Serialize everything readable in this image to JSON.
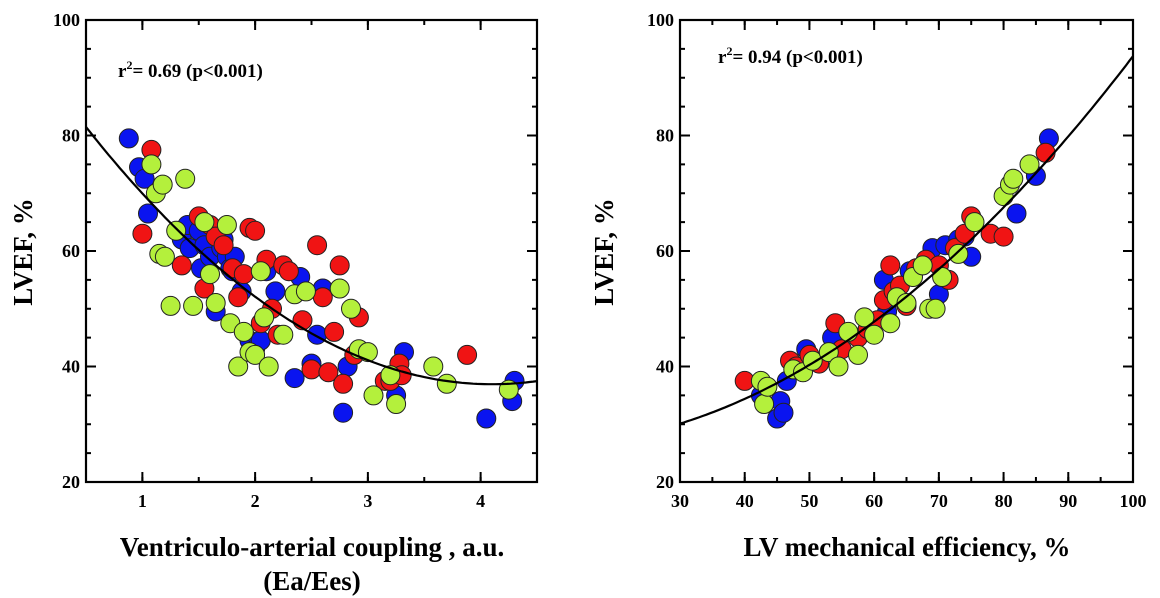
{
  "colors": {
    "blue": "#0a14f0",
    "red": "#f01414",
    "green": "#b4f03c",
    "axis": "#000000"
  },
  "chart_data": [
    {
      "type": "scatter",
      "title": "",
      "annotation": {
        "r2_prefix": "r",
        "r2_exp": "2",
        "r2_text": "= 0.69 (p<0.001)"
      },
      "xlabel": "Ventriculo-arterial coupling , a.u.",
      "xlabel2": "(Ea/Ees)",
      "ylabel": "LVEF, %",
      "xlim": [
        0.5,
        4.5
      ],
      "ylim": [
        20,
        100
      ],
      "xticks": [
        1,
        2,
        3,
        4
      ],
      "xtick_labels": [
        "1",
        "2",
        "3",
        "4"
      ],
      "yticks": [
        20,
        40,
        60,
        80,
        100
      ],
      "ytick_labels": [
        "20",
        "40",
        "60",
        "80",
        "100"
      ],
      "grid": false,
      "fit_curve": {
        "type": "quadratic",
        "x": [
          0.5,
          0.8,
          1.0,
          1.5,
          2.0,
          2.5,
          3.0,
          3.5,
          4.0,
          4.5
        ],
        "y": [
          80.5,
          74.5,
          70.5,
          61.0,
          52.5,
          45.5,
          40.5,
          37.5,
          37.0,
          38.0
        ]
      },
      "series": [
        {
          "color": "blue",
          "x": [
            0.88,
            0.97,
            1.02,
            1.05,
            1.35,
            1.4,
            1.42,
            1.5,
            1.52,
            1.55,
            1.6,
            1.65,
            1.7,
            1.72,
            1.75,
            1.78,
            1.8,
            1.82,
            1.88,
            1.95,
            2.0,
            2.05,
            2.1,
            2.18,
            2.35,
            2.4,
            2.5,
            2.55,
            2.6,
            2.78,
            2.82,
            3.25,
            3.32,
            4.05,
            4.28,
            4.3
          ],
          "y": [
            79.5,
            74.5,
            72.5,
            66.5,
            62.0,
            64.5,
            60.5,
            63.5,
            57.0,
            61.0,
            59.0,
            49.5,
            60.5,
            62.0,
            59.0,
            57.0,
            56.5,
            59.0,
            53.0,
            44.5,
            43.0,
            44.5,
            56.5,
            53.0,
            38.0,
            55.5,
            40.5,
            45.5,
            53.5,
            32.0,
            40.0,
            35.0,
            42.5,
            31.0,
            34.0,
            37.5
          ]
        },
        {
          "color": "red",
          "x": [
            1.0,
            1.08,
            1.35,
            1.5,
            1.55,
            1.6,
            1.65,
            1.72,
            1.8,
            1.85,
            1.9,
            1.95,
            2.0,
            2.05,
            2.1,
            2.15,
            2.2,
            2.25,
            2.3,
            2.42,
            2.5,
            2.55,
            2.6,
            2.65,
            2.7,
            2.75,
            2.78,
            2.88,
            2.92,
            3.15,
            3.2,
            3.28,
            3.3,
            3.88
          ],
          "y": [
            63.0,
            77.5,
            57.5,
            66.0,
            53.5,
            64.5,
            62.5,
            61.0,
            57.0,
            52.0,
            56.0,
            64.0,
            63.5,
            47.5,
            58.5,
            50.0,
            45.5,
            57.5,
            56.5,
            48.0,
            39.5,
            61.0,
            52.0,
            39.0,
            46.0,
            57.5,
            37.0,
            42.0,
            48.5,
            37.5,
            37.5,
            40.5,
            38.5,
            42.0
          ]
        },
        {
          "color": "green",
          "x": [
            1.08,
            1.12,
            1.15,
            1.18,
            1.2,
            1.25,
            1.3,
            1.38,
            1.45,
            1.55,
            1.6,
            1.65,
            1.75,
            1.78,
            1.85,
            1.9,
            1.95,
            2.0,
            2.05,
            2.08,
            2.12,
            2.25,
            2.35,
            2.45,
            2.75,
            2.85,
            2.92,
            3.0,
            3.05,
            3.2,
            3.25,
            3.58,
            3.7,
            4.25
          ],
          "y": [
            75.0,
            70.0,
            59.5,
            71.5,
            59.0,
            50.5,
            63.5,
            72.5,
            50.5,
            65.0,
            56.0,
            51.0,
            64.5,
            47.5,
            40.0,
            46.0,
            42.5,
            42.0,
            56.5,
            48.5,
            40.0,
            45.5,
            52.5,
            53.0,
            53.5,
            50.0,
            43.0,
            42.5,
            35.0,
            38.5,
            33.5,
            40.0,
            37.0,
            36.0
          ]
        }
      ]
    },
    {
      "type": "scatter",
      "title": "",
      "annotation": {
        "r2_prefix": "r",
        "r2_exp": "2",
        "r2_text": "= 0.94 (p<0.001)"
      },
      "xlabel": "LV mechanical efficiency, %",
      "ylabel": "LVEF, %",
      "xlim": [
        30,
        100
      ],
      "ylim": [
        20,
        100
      ],
      "xticks": [
        30,
        40,
        50,
        60,
        70,
        80,
        90,
        100
      ],
      "xtick_labels": [
        "30",
        "40",
        "50",
        "60",
        "70",
        "80",
        "90",
        "100"
      ],
      "yticks": [
        20,
        40,
        60,
        80,
        100
      ],
      "ytick_labels": [
        "20",
        "40",
        "60",
        "80",
        "100"
      ],
      "grid": false,
      "fit_curve": {
        "type": "quadratic",
        "x": [
          30,
          40,
          50,
          60,
          70,
          80,
          90,
          100
        ],
        "y": [
          29.0,
          35.0,
          41.5,
          48.5,
          56.5,
          66.0,
          79.0,
          95.0
        ]
      },
      "series": [
        {
          "color": "blue",
          "x": [
            42.5,
            45.0,
            45.5,
            46.0,
            46.5,
            49.5,
            53.5,
            61.5,
            62.0,
            65.5,
            69.0,
            70.0,
            71.0,
            73.0,
            74.0,
            75.0,
            82.0,
            85.0,
            87.0
          ],
          "y": [
            35.0,
            31.0,
            34.0,
            32.0,
            37.5,
            43.0,
            45.0,
            55.0,
            49.5,
            56.5,
            60.5,
            52.5,
            61.0,
            62.0,
            62.5,
            59.0,
            66.5,
            73.0,
            79.5
          ]
        },
        {
          "color": "red",
          "x": [
            40.0,
            47.0,
            48.0,
            50.0,
            51.5,
            54.0,
            55.0,
            57.5,
            59.0,
            60.5,
            61.5,
            62.5,
            63.0,
            64.0,
            65.0,
            66.5,
            68.0,
            70.0,
            71.5,
            72.5,
            74.0,
            75.0,
            78.0,
            80.0,
            86.5
          ],
          "y": [
            37.5,
            41.0,
            40.0,
            42.0,
            40.5,
            47.5,
            43.0,
            45.0,
            46.5,
            48.0,
            51.5,
            57.5,
            53.0,
            54.0,
            50.5,
            57.0,
            58.5,
            57.5,
            55.0,
            60.5,
            63.0,
            66.0,
            63.0,
            62.5,
            77.0
          ]
        },
        {
          "color": "green",
          "x": [
            42.5,
            43.0,
            43.5,
            47.5,
            49.0,
            50.5,
            53.0,
            54.5,
            56.0,
            57.5,
            58.5,
            60.0,
            62.5,
            63.5,
            65.0,
            66.0,
            67.5,
            68.5,
            69.5,
            70.5,
            73.0,
            75.5,
            80.0,
            81.0,
            81.5,
            84.0
          ],
          "y": [
            37.5,
            33.5,
            36.5,
            39.5,
            39.0,
            41.0,
            42.5,
            40.0,
            46.0,
            42.0,
            48.5,
            45.5,
            47.5,
            52.0,
            51.0,
            55.5,
            57.5,
            50.0,
            50.0,
            55.5,
            59.5,
            65.0,
            69.5,
            71.5,
            72.5,
            75.0
          ]
        }
      ]
    }
  ]
}
